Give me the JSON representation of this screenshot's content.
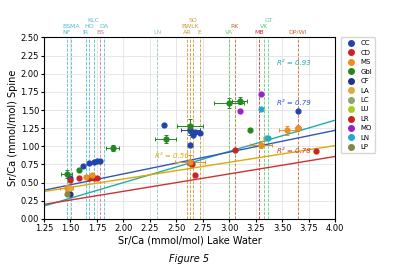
{
  "chart_data": {
    "type": "scatter",
    "x_label": "Sr/Ca (mmol/mol) Lake Water",
    "y_label": "Sr/Ca (mmol/mol) Spine",
    "caption": "Figure 5",
    "xlim": [
      1.25,
      4.0
    ],
    "ylim": [
      0.0,
      2.5
    ],
    "xticks": [
      1.25,
      {
        "value": 1.5,
        "label": "1.50"
      },
      1.75,
      {
        "value": 2.0,
        "label": "2.00"
      },
      2.25,
      {
        "value": 2.5,
        "label": "2.50"
      },
      2.75,
      {
        "value": 3.0,
        "label": "3.00"
      },
      3.25,
      {
        "value": 3.5,
        "label": "3.50"
      },
      3.75,
      {
        "value": 4.0,
        "label": "4.00"
      }
    ],
    "yticks": [
      {
        "value": 0.0,
        "label": "0.00"
      },
      0.25,
      {
        "value": 0.5,
        "label": "0.50"
      },
      0.75,
      {
        "value": 1.0,
        "label": "1.00"
      },
      1.25,
      {
        "value": 1.5,
        "label": "1.50"
      },
      1.75,
      {
        "value": 2.0,
        "label": "2.00"
      },
      2.25,
      {
        "value": 2.5,
        "label": "2.50"
      }
    ],
    "grid": true,
    "legend": "upper left",
    "marker": "o",
    "series": [
      {
        "name": "CC",
        "color": "#2244aa",
        "x": [
          1.5,
          1.62,
          1.68,
          1.72,
          1.75,
          1.78,
          2.38,
          2.63,
          2.66,
          2.68,
          2.72,
          2.63,
          3.65
        ],
        "values": [
          0.57,
          0.73,
          0.77,
          0.79,
          0.8,
          0.8,
          1.3,
          1.02,
          1.15,
          1.2,
          1.18,
          1.23,
          1.48
        ],
        "xerr": [
          0.0,
          0.0,
          0.0,
          0.0,
          0.0,
          0.0,
          0.0,
          0.0,
          0.0,
          0.0,
          0.0,
          0.09,
          0.0
        ],
        "yerr": [
          0.0,
          0.0,
          0.0,
          0.0,
          0.0,
          0.0,
          0.0,
          0.0,
          0.0,
          0.0,
          0.0,
          0.07,
          0.0
        ]
      },
      {
        "name": "CD",
        "color": "#cc2222",
        "x": [
          1.5,
          1.58,
          1.68,
          1.72,
          1.75,
          2.63,
          2.65,
          2.68,
          3.05,
          3.65,
          3.82
        ],
        "values": [
          0.53,
          0.56,
          0.57,
          0.57,
          0.56,
          0.77,
          0.76,
          0.6,
          0.95,
          1.25,
          0.93
        ],
        "xerr": [
          0.0,
          0.0,
          0.0,
          0.0,
          0.0,
          0.0,
          0.0,
          0.0,
          0.0,
          0.0,
          0.0
        ],
        "yerr": [
          0.0,
          0.0,
          0.0,
          0.0,
          0.0,
          0.0,
          0.0,
          0.0,
          0.0,
          0.0,
          0.0
        ]
      },
      {
        "name": "MS",
        "color": "#e89020",
        "x": [
          1.465,
          1.645,
          1.7,
          2.63,
          3.3,
          3.55,
          3.65
        ],
        "values": [
          0.43,
          0.58,
          0.6,
          0.79,
          1.02,
          1.22,
          1.25
        ],
        "xerr": [
          0.06,
          0.0,
          0.0,
          0.14,
          0.1,
          0.08,
          0.0
        ],
        "yerr": [
          0.04,
          0.0,
          0.0,
          0.09,
          0.05,
          0.06,
          0.0
        ]
      },
      {
        "name": "Gbl",
        "color": "#228822",
        "x": [
          1.465,
          1.58,
          1.9,
          2.4,
          2.63,
          3.0,
          3.1,
          3.2
        ],
        "values": [
          0.62,
          0.68,
          0.98,
          1.1,
          1.28,
          1.6,
          1.63,
          1.22
        ],
        "xerr": [
          0.05,
          0.0,
          0.06,
          0.1,
          0.12,
          0.14,
          0.07,
          0.0
        ],
        "yerr": [
          0.05,
          0.0,
          0.04,
          0.06,
          0.09,
          0.07,
          0.05,
          0.0
        ]
      },
      {
        "name": "CF",
        "color": "#223388",
        "x": [
          1.5
        ],
        "values": [
          0.35
        ],
        "xerr": [
          0.0
        ],
        "yerr": [
          0.0
        ]
      },
      {
        "name": "LA",
        "color": "#ddaa44",
        "x": [
          1.5
        ],
        "values": [
          0.43
        ],
        "xerr": [
          0.0
        ],
        "yerr": [
          0.0
        ]
      },
      {
        "name": "LC",
        "color": "#88aa66",
        "x": [
          3.35
        ],
        "values": [
          1.12
        ],
        "xerr": [
          0.0
        ],
        "yerr": [
          0.0
        ]
      },
      {
        "name": "LU",
        "color": "#aacc22",
        "x": [],
        "values": [],
        "xerr": [],
        "yerr": []
      },
      {
        "name": "LR",
        "color": "#cc2222",
        "x": [],
        "values": [],
        "xerr": [],
        "yerr": []
      },
      {
        "name": "MO",
        "color": "#9922cc",
        "x": [
          3.1,
          3.3
        ],
        "values": [
          1.48,
          1.72
        ],
        "xerr": [
          0.0,
          0.0
        ],
        "yerr": [
          0.0,
          0.0
        ]
      },
      {
        "name": "LN",
        "color": "#22aacc",
        "x": [
          3.3,
          3.37
        ],
        "values": [
          1.52,
          1.12
        ],
        "xerr": [
          0.0,
          0.0
        ],
        "yerr": [
          0.0,
          0.0
        ]
      },
      {
        "name": "LP",
        "color": "#888844",
        "x": [
          1.465
        ],
        "values": [
          0.34
        ],
        "xerr": [
          0.0
        ],
        "yerr": [
          0.0
        ]
      }
    ],
    "regression_lines": [
      {
        "slope": 0.43,
        "intercept": -0.36,
        "color": "#22aaaa"
      },
      {
        "slope": 0.3,
        "intercept": 0.02,
        "color": "#3355bb"
      },
      {
        "slope": 0.23,
        "intercept": 0.09,
        "color": "#ddaa00"
      },
      {
        "slope": 0.24,
        "intercept": -0.1,
        "color": "#cc3333"
      }
    ],
    "annotations": [
      {
        "text": "R² = 0.93",
        "x": 3.45,
        "y": 2.1,
        "color": "#22aaaa"
      },
      {
        "text": "R² = 0.79",
        "x": 3.45,
        "y": 1.55,
        "color": "#3355bb"
      },
      {
        "text": "R² = 0.56",
        "x": 2.3,
        "y": 0.82,
        "color": "#ddaa00"
      },
      {
        "text": "R² = 0.78",
        "x": 3.45,
        "y": 0.9,
        "color": "#cc3333"
      }
    ],
    "vlines": [
      {
        "x": 1.465,
        "label": "NF",
        "color": "#55bbcc"
      },
      {
        "x": 1.505,
        "label": "BSMA",
        "color": "#55bbcc"
      },
      {
        "x": 1.645,
        "label": "IR",
        "color": "#55bbcc"
      },
      {
        "x": 1.68,
        "label": "HO",
        "color": "#55bbcc"
      },
      {
        "x": 1.72,
        "label": "KLC",
        "color": "#55bbcc"
      },
      {
        "x": 1.78,
        "label": "BS",
        "color": "#cc7799"
      },
      {
        "x": 1.82,
        "label": "DA",
        "color": "#55bbcc"
      },
      {
        "x": 2.32,
        "label": "LN",
        "color": "#88cccc"
      },
      {
        "x": 2.6,
        "label": "AR",
        "color": "#cc9933"
      },
      {
        "x": 2.63,
        "label": "BWLK",
        "color": "#cc9933"
      },
      {
        "x": 2.66,
        "label": "SO",
        "color": "#cc9933"
      },
      {
        "x": 2.72,
        "label": "E",
        "color": "#cc9933"
      },
      {
        "x": 3.0,
        "label": "VA",
        "color": "#66cc66"
      },
      {
        "x": 3.05,
        "label": "RK",
        "color": "#cc6633"
      },
      {
        "x": 3.28,
        "label": "MB",
        "color": "#cc3333"
      },
      {
        "x": 3.33,
        "label": "VK",
        "color": "#66cc66"
      },
      {
        "x": 3.37,
        "label": "GT",
        "color": "#66cc99"
      },
      {
        "x": 3.65,
        "label": "DP/WI",
        "color": "#cc6633"
      }
    ]
  }
}
